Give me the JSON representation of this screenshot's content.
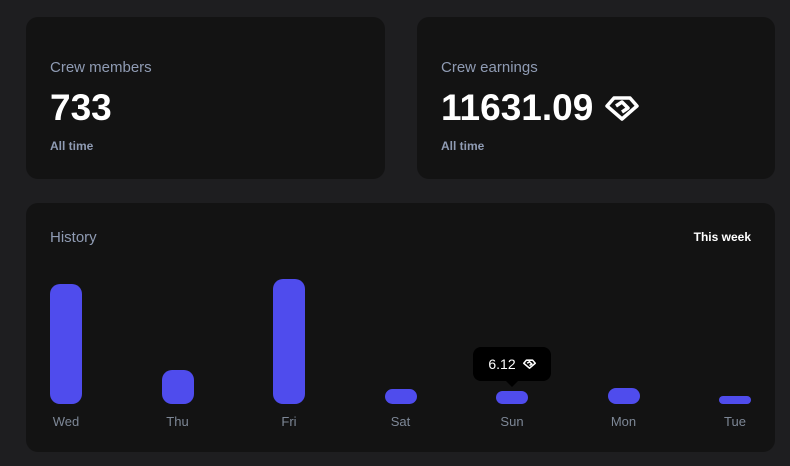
{
  "members": {
    "label": "Crew members",
    "value": "733",
    "period": "All time"
  },
  "earnings": {
    "label": "Crew earnings",
    "value": "11631.09",
    "icon": "diamond-token-icon",
    "period": "All time"
  },
  "history": {
    "title": "History",
    "range": "This week",
    "tooltip": {
      "value": "6.12",
      "icon": "diamond-token-icon"
    }
  },
  "chart_data": {
    "type": "bar",
    "categories": [
      "Wed",
      "Thu",
      "Fri",
      "Sat",
      "Sun",
      "Mon",
      "Tue"
    ],
    "values": [
      56.5,
      16,
      58.8,
      7,
      6.12,
      7.5,
      3.8
    ],
    "color": "#4f4ced"
  }
}
